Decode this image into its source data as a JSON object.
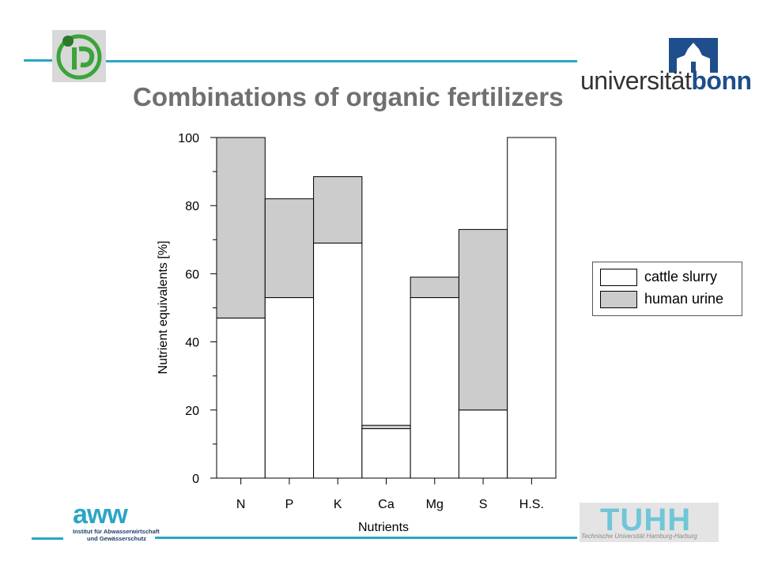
{
  "header": {
    "title": "Combinations of organic fertilizers",
    "logo_left_name": "ipe",
    "logo_right_text_regular": "universität",
    "logo_right_text_bold": "bonn"
  },
  "footer": {
    "aww_word": "aww",
    "aww_line1": "Institut für Abwasserwirtschaft",
    "aww_line2": "und Gewässerschutz",
    "tuhh_word": "TUHH",
    "tuhh_sub": "Technische Universität Hamburg-Harburg"
  },
  "colors": {
    "accent_rule": "#2aa6c4",
    "title": "#707070",
    "cattle_slurry": "#ffffff",
    "human_urine": "#cccccc"
  },
  "chart_data": {
    "type": "bar",
    "stacked": true,
    "categories": [
      "N",
      "P",
      "K",
      "Ca",
      "Mg",
      "S",
      "H.S."
    ],
    "series": [
      {
        "name": "cattle slurry",
        "color": "#ffffff",
        "values": [
          47,
          53,
          69,
          14.5,
          53,
          20,
          100
        ]
      },
      {
        "name": "human urine",
        "color": "#cccccc",
        "values": [
          53,
          29,
          19.5,
          1,
          6,
          53,
          0
        ]
      }
    ],
    "xlabel": "Nutrients",
    "ylabel": "Nutrient equivalents [%]",
    "ylim": [
      0,
      100
    ],
    "yticks": [
      0,
      20,
      40,
      60,
      80,
      100
    ],
    "legend": {
      "position": "right",
      "entries": [
        "cattle slurry",
        "human urine"
      ]
    },
    "grid": false
  }
}
